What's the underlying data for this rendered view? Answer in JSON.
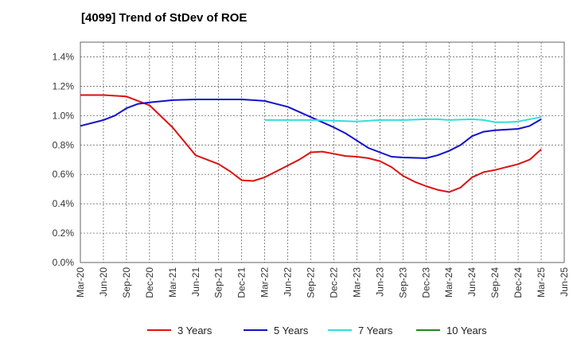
{
  "chart_data": {
    "type": "line",
    "title": "[4099]  Trend of StDev of ROE",
    "xlabel": "",
    "ylabel": "",
    "grid": true,
    "legend_position": "bottom",
    "x_tick_labels": [
      "Mar-20",
      "Jun-20",
      "Sep-20",
      "Dec-20",
      "Mar-21",
      "Jun-21",
      "Sep-21",
      "Dec-21",
      "Mar-22",
      "Jun-22",
      "Sep-22",
      "Dec-22",
      "Mar-23",
      "Jun-23",
      "Sep-23",
      "Dec-23",
      "Mar-24",
      "Jun-24",
      "Sep-24",
      "Dec-24",
      "Mar-25",
      "Jun-25"
    ],
    "y_tick_labels": [
      "0.0%",
      "0.2%",
      "0.4%",
      "0.6%",
      "0.8%",
      "1.0%",
      "1.2%",
      "1.4%"
    ],
    "ylim": [
      0,
      1.5
    ],
    "series": [
      {
        "name": "3 Years",
        "color": "#dd1111",
        "points": [
          [
            0,
            1.14
          ],
          [
            1,
            1.14
          ],
          [
            2,
            1.13
          ],
          [
            3,
            1.07
          ],
          [
            4,
            0.92
          ],
          [
            5,
            0.73
          ],
          [
            6,
            0.67
          ],
          [
            6.5,
            0.62
          ],
          [
            7,
            0.56
          ],
          [
            7.5,
            0.555
          ],
          [
            8,
            0.58
          ],
          [
            8.5,
            0.62
          ],
          [
            9,
            0.66
          ],
          [
            9.5,
            0.7
          ],
          [
            10,
            0.75
          ],
          [
            10.5,
            0.755
          ],
          [
            11,
            0.74
          ],
          [
            11.5,
            0.725
          ],
          [
            12,
            0.72
          ],
          [
            12.5,
            0.71
          ],
          [
            13,
            0.69
          ],
          [
            13.5,
            0.65
          ],
          [
            14,
            0.59
          ],
          [
            14.5,
            0.55
          ],
          [
            15,
            0.52
          ],
          [
            15.5,
            0.495
          ],
          [
            16,
            0.48
          ],
          [
            16.5,
            0.51
          ],
          [
            17,
            0.58
          ],
          [
            17.5,
            0.615
          ],
          [
            18,
            0.63
          ],
          [
            19,
            0.67
          ],
          [
            19.5,
            0.7
          ],
          [
            20,
            0.77
          ]
        ]
      },
      {
        "name": "5 Years",
        "color": "#1111cc",
        "points": [
          [
            0,
            0.93
          ],
          [
            1,
            0.97
          ],
          [
            1.5,
            1.0
          ],
          [
            2,
            1.05
          ],
          [
            2.5,
            1.08
          ],
          [
            3,
            1.09
          ],
          [
            4,
            1.105
          ],
          [
            5,
            1.11
          ],
          [
            6,
            1.11
          ],
          [
            7,
            1.11
          ],
          [
            7.5,
            1.105
          ],
          [
            8,
            1.1
          ],
          [
            9,
            1.06
          ],
          [
            10,
            0.99
          ],
          [
            11,
            0.92
          ],
          [
            11.5,
            0.88
          ],
          [
            12,
            0.83
          ],
          [
            12.5,
            0.78
          ],
          [
            13,
            0.75
          ],
          [
            13.5,
            0.72
          ],
          [
            14,
            0.715
          ],
          [
            15,
            0.71
          ],
          [
            15.5,
            0.73
          ],
          [
            16,
            0.76
          ],
          [
            16.5,
            0.8
          ],
          [
            17,
            0.86
          ],
          [
            17.5,
            0.89
          ],
          [
            18,
            0.9
          ],
          [
            19,
            0.91
          ],
          [
            19.5,
            0.93
          ],
          [
            20,
            0.975
          ]
        ]
      },
      {
        "name": "7 Years",
        "color": "#33dddd",
        "points": [
          [
            8,
            0.97
          ],
          [
            9,
            0.97
          ],
          [
            10,
            0.97
          ],
          [
            11,
            0.965
          ],
          [
            12,
            0.96
          ],
          [
            13,
            0.97
          ],
          [
            14,
            0.97
          ],
          [
            15,
            0.975
          ],
          [
            15.5,
            0.975
          ],
          [
            16,
            0.97
          ],
          [
            17,
            0.975
          ],
          [
            17.5,
            0.97
          ],
          [
            18,
            0.955
          ],
          [
            18.5,
            0.955
          ],
          [
            19,
            0.96
          ],
          [
            20,
            0.99
          ]
        ]
      },
      {
        "name": "10 Years",
        "color": "#228822",
        "points": []
      }
    ]
  }
}
